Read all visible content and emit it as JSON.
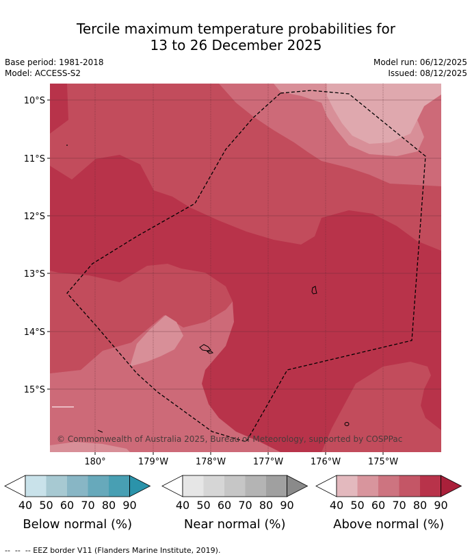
{
  "title": {
    "line1": "Tercile maximum temperature probabilities for",
    "line2": "13 to 26 December 2025"
  },
  "meta": {
    "base_period": "Base period: 1981-2018",
    "model": "Model: ACCESS-S2",
    "model_run": "Model run: 06/12/2025",
    "issued": "Issued: 08/12/2025"
  },
  "map": {
    "lat_labels": [
      "10°S",
      "11°S",
      "12°S",
      "13°S",
      "14°S",
      "15°S"
    ],
    "lon_labels": [
      "180°",
      "179°W",
      "178°W",
      "177°W",
      "176°W",
      "175°W"
    ],
    "copyright": "© Commonwealth of Australia 2025, Bureau of Meteorology, supported by COSPPac",
    "colors": {
      "above_70": "#c24c5c",
      "above_80": "#b8334a",
      "above_60": "#cd6a78",
      "above_50": "#d88f98",
      "coast": "#000000"
    }
  },
  "legends": [
    {
      "title": "Below normal (%)",
      "labels": [
        "40",
        "50",
        "60",
        "70",
        "80",
        "90"
      ],
      "colors": [
        "#ffffff",
        "#c9e2ea",
        "#a7c9d2",
        "#88b6c5",
        "#67a9bb",
        "#489fb3",
        "#2b93aa"
      ]
    },
    {
      "title": "Near normal (%)",
      "labels": [
        "40",
        "50",
        "60",
        "70",
        "80",
        "90"
      ],
      "colors": [
        "#ffffff",
        "#e6e6e6",
        "#d6d6d6",
        "#c6c6c6",
        "#b4b4b4",
        "#a0a0a0",
        "#8a8a8a"
      ]
    },
    {
      "title": "Above normal (%)",
      "labels": [
        "40",
        "50",
        "60",
        "70",
        "80",
        "90"
      ],
      "colors": [
        "#ffffff",
        "#e3b9be",
        "#d8959d",
        "#cd7480",
        "#c45666",
        "#b8334a",
        "#a9203a"
      ]
    }
  ],
  "footnote": "--  --  -- EEZ border V11 (Flanders Marine Institute, 2019)."
}
